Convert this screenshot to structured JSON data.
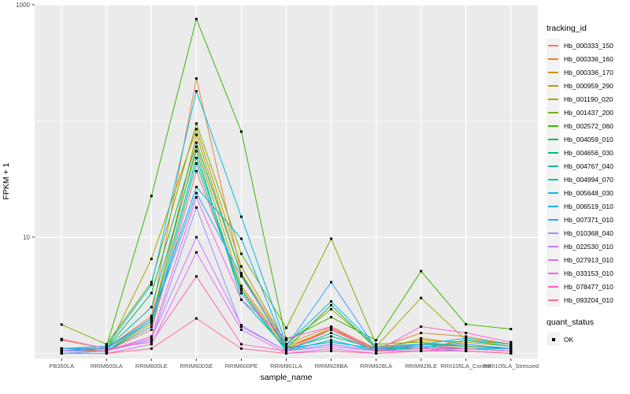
{
  "chart_data": {
    "type": "line",
    "title": "",
    "xlabel": "sample_name",
    "ylabel": "FPKM + 1",
    "y_scale": "log10",
    "ylim": [
      0.9,
      1100
    ],
    "y_ticks": [
      {
        "value": 10,
        "label": "10"
      },
      {
        "value": 1000,
        "label": "1000"
      }
    ],
    "y_minor_gridlines": [
      1,
      100
    ],
    "grid": "on",
    "panel_bg": "#EBEBEB",
    "gridline_color": "#FFFFFF",
    "tick_color": "#333333",
    "tick_label_color": "#4D4D4D",
    "point_color": "#000000",
    "legend_position": "right",
    "categories": [
      "PB350LA",
      "RRIM600LA",
      "RRIM600LE",
      "RRIM600SE",
      "RRIM600PE",
      "RRIM901LA",
      "RRIM928BA",
      "RRIM928LA",
      "RRIM928LE",
      "RRII105LA_Control",
      "RRII105LA_Stressed"
    ],
    "series": [
      {
        "name": "Hb_000333_150",
        "color": "#F8766D",
        "values": [
          1.05,
          1.05,
          1.6,
          37,
          3.6,
          1.1,
          1.6,
          1.05,
          1.2,
          1.1,
          1.05
        ]
      },
      {
        "name": "Hb_000336_160",
        "color": "#EA8331",
        "values": [
          1.3,
          1.1,
          2.1,
          232,
          4.9,
          1.2,
          1.7,
          1.1,
          1.5,
          1.4,
          1.2
        ]
      },
      {
        "name": "Hb_000336_170",
        "color": "#D89000",
        "values": [
          1.05,
          1.05,
          1.8,
          76,
          4.7,
          1.1,
          1.65,
          1.05,
          1.35,
          1.2,
          1.1
        ]
      },
      {
        "name": "Hb_000959_290",
        "color": "#C09B00",
        "values": [
          1.1,
          1.1,
          2.0,
          60,
          3.8,
          1.15,
          1.6,
          1.1,
          1.3,
          1.25,
          1.15
        ]
      },
      {
        "name": "Hb_001190_020",
        "color": "#A3A500",
        "values": [
          1.1,
          1.05,
          6.5,
          85,
          5.6,
          1.2,
          2.4,
          1.15,
          3.0,
          1.3,
          1.2
        ]
      },
      {
        "name": "Hb_001437_200",
        "color": "#7CAE00",
        "values": [
          1.77,
          1.2,
          4.1,
          95,
          7.2,
          1.66,
          9.7,
          1.2,
          1.25,
          1.15,
          1.1
        ]
      },
      {
        "name": "Hb_002572_060",
        "color": "#39B600",
        "values": [
          1.1,
          1.15,
          22.6,
          753,
          81,
          1.3,
          2.05,
          1.3,
          5.1,
          1.78,
          1.62
        ]
      },
      {
        "name": "Hb_004059_010",
        "color": "#00BB4E",
        "values": [
          1.05,
          1.1,
          3.3,
          65,
          4.8,
          1.1,
          2.6,
          1.1,
          1.2,
          1.15,
          1.1
        ]
      },
      {
        "name": "Hb_004656_030",
        "color": "#00BF7D",
        "values": [
          1.0,
          1.05,
          1.9,
          48,
          3.5,
          1.05,
          1.5,
          1.05,
          1.15,
          1.1,
          1.05
        ]
      },
      {
        "name": "Hb_004767_040",
        "color": "#00C1A3",
        "values": [
          1.05,
          1.1,
          2.5,
          55,
          2.9,
          1.1,
          1.4,
          1.1,
          1.1,
          1.3,
          1.15
        ]
      },
      {
        "name": "Hb_004994_070",
        "color": "#00BFC4",
        "values": [
          1.0,
          1.05,
          1.7,
          43,
          3.3,
          1.05,
          1.3,
          1.05,
          1.1,
          1.1,
          1.05
        ]
      },
      {
        "name": "Hb_005648_030",
        "color": "#00BAE0",
        "values": [
          1.1,
          1.15,
          3.9,
          180,
          15,
          1.2,
          2.8,
          1.15,
          1.2,
          1.35,
          1.2
        ]
      },
      {
        "name": "Hb_006519_010",
        "color": "#00B0F6",
        "values": [
          1.05,
          1.1,
          2.0,
          27,
          9.7,
          1.1,
          1.25,
          1.1,
          1.15,
          1.1,
          1.1
        ]
      },
      {
        "name": "Hb_007371_010",
        "color": "#35A2FF",
        "values": [
          1.1,
          1.1,
          1.9,
          24,
          4.6,
          1.15,
          4.1,
          1.1,
          1.2,
          1.2,
          1.1
        ]
      },
      {
        "name": "Hb_010368_040",
        "color": "#9590FF",
        "values": [
          1.0,
          1.05,
          1.3,
          18,
          1.7,
          1.05,
          1.2,
          1.05,
          1.1,
          1.05,
          1.0
        ]
      },
      {
        "name": "Hb_022530_010",
        "color": "#C77CFF",
        "values": [
          1.05,
          1.05,
          1.35,
          10,
          1.75,
          1.05,
          1.15,
          1.05,
          1.05,
          1.1,
          1.05
        ]
      },
      {
        "name": "Hb_027913_010",
        "color": "#E76BF3",
        "values": [
          1.0,
          1.0,
          1.2,
          7.4,
          1.6,
          1.0,
          1.1,
          1.0,
          1.05,
          1.05,
          1.0
        ]
      },
      {
        "name": "Hb_033153_010",
        "color": "#FA62DB",
        "values": [
          1.05,
          1.05,
          1.4,
          22,
          2.9,
          1.35,
          1.7,
          1.05,
          1.7,
          1.5,
          1.25
        ]
      },
      {
        "name": "Hb_078477_010",
        "color": "#FF62BC",
        "values": [
          1.33,
          1.1,
          1.25,
          4.6,
          1.2,
          1.05,
          1.6,
          1.05,
          1.1,
          1.1,
          1.05
        ]
      },
      {
        "name": "Hb_093204_010",
        "color": "#FF6A98",
        "values": [
          1.0,
          1.0,
          1.1,
          2.0,
          1.1,
          1.0,
          1.05,
          1.0,
          1.05,
          1.05,
          1.0
        ]
      }
    ],
    "legend": {
      "title": "tracking_id"
    },
    "legend2": {
      "title": "quant_status",
      "items": [
        {
          "label": "OK"
        }
      ]
    }
  }
}
